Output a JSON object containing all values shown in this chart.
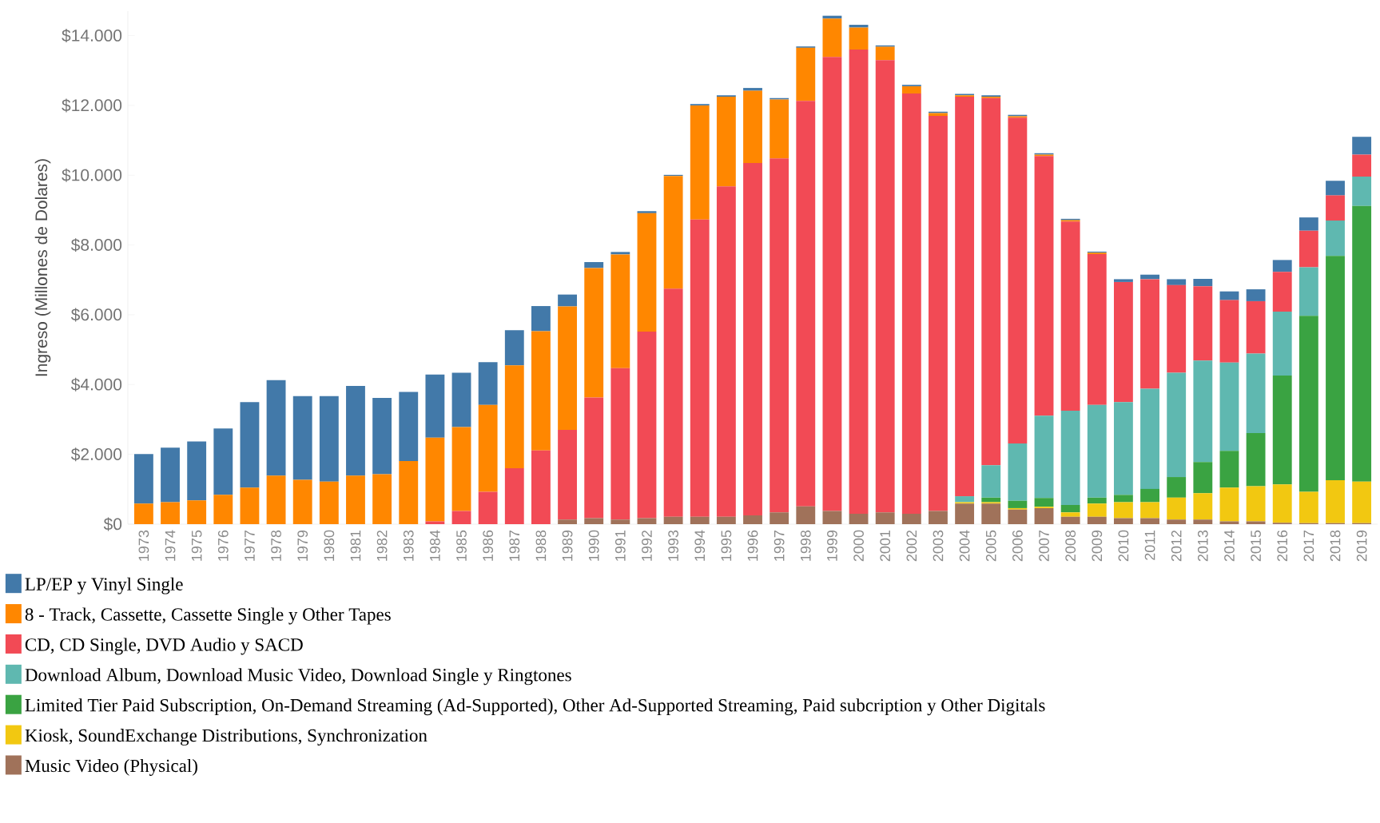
{
  "chart_data": {
    "type": "bar",
    "stacked": true,
    "ylabel": "Ingreso (Millones de Dolares)",
    "legend": "bottom",
    "categories": [
      "1973",
      "1974",
      "1975",
      "1976",
      "1977",
      "1978",
      "1979",
      "1980",
      "1981",
      "1982",
      "1983",
      "1984",
      "1985",
      "1986",
      "1987",
      "1988",
      "1989",
      "1990",
      "1991",
      "1992",
      "1993",
      "1994",
      "1995",
      "1996",
      "1997",
      "1998",
      "1999",
      "2000",
      "2001",
      "2002",
      "2003",
      "2004",
      "2005",
      "2006",
      "2007",
      "2008",
      "2009",
      "2010",
      "2011",
      "2012",
      "2013",
      "2014",
      "2015",
      "2016",
      "2017",
      "2018",
      "2019"
    ],
    "ylim": [
      0,
      14700
    ],
    "yticks": [
      {
        "value": 0,
        "label": "$0"
      },
      {
        "value": 2000,
        "label": "$2.000"
      },
      {
        "value": 4000,
        "label": "$4.000"
      },
      {
        "value": 6000,
        "label": "$6.000"
      },
      {
        "value": 8000,
        "label": "$8.000"
      },
      {
        "value": 10000,
        "label": "$10.000"
      },
      {
        "value": 12000,
        "label": "$12.000"
      },
      {
        "value": 14000,
        "label": "$14.000"
      }
    ],
    "series": [
      {
        "name": "Music Video (Physical)",
        "color": "#a0725a",
        "values": [
          0,
          0,
          0,
          0,
          0,
          0,
          0,
          0,
          0,
          0,
          0,
          0,
          0,
          0,
          0,
          0,
          130,
          170,
          130,
          170,
          210,
          210,
          210,
          250,
          340,
          510,
          380,
          300,
          340,
          300,
          380,
          590,
          590,
          420,
          460,
          210,
          210,
          170,
          170,
          130,
          130,
          80,
          80,
          40,
          30,
          30,
          30
        ]
      },
      {
        "name": "Kiosk, SoundExchange Distributions, Synchronization",
        "color": "#f2c811",
        "values": [
          0,
          0,
          0,
          0,
          0,
          0,
          0,
          0,
          0,
          0,
          0,
          0,
          0,
          0,
          0,
          0,
          0,
          0,
          0,
          0,
          0,
          0,
          0,
          0,
          0,
          0,
          0,
          0,
          0,
          0,
          0,
          40,
          40,
          40,
          40,
          130,
          380,
          460,
          460,
          630,
          760,
          970,
          1010,
          1100,
          900,
          1230,
          1190
        ]
      },
      {
        "name": "Limited Tier Paid Subscription, On-Demand Streaming (Ad-Supported), Other Ad-Supported Streaming, Paid subcription y Other Digitals",
        "color": "#3aa342",
        "values": [
          0,
          0,
          0,
          0,
          0,
          0,
          0,
          0,
          0,
          0,
          0,
          0,
          0,
          0,
          0,
          0,
          0,
          0,
          0,
          0,
          0,
          0,
          0,
          0,
          0,
          0,
          0,
          0,
          0,
          0,
          0,
          0,
          130,
          210,
          250,
          210,
          170,
          210,
          380,
          590,
          890,
          1050,
          1520,
          3120,
          5040,
          6430,
          7900
        ]
      },
      {
        "name": "Download Album, Download Music Video, Download Single y Ringtones",
        "color": "#5fb8b0",
        "values": [
          0,
          0,
          0,
          0,
          0,
          0,
          0,
          0,
          0,
          0,
          0,
          0,
          0,
          0,
          0,
          0,
          0,
          0,
          0,
          0,
          0,
          0,
          0,
          0,
          0,
          0,
          0,
          0,
          0,
          0,
          0,
          170,
          930,
          1640,
          2360,
          2700,
          2660,
          2660,
          2870,
          2990,
          2910,
          2530,
          2280,
          1830,
          1390,
          1010,
          840
        ]
      },
      {
        "name": "CD, CD Single, DVD Audio y SACD",
        "color": "#f24a55",
        "values": [
          0,
          0,
          0,
          0,
          0,
          0,
          0,
          0,
          0,
          0,
          0,
          80,
          380,
          930,
          1600,
          2110,
          2570,
          3460,
          4340,
          5350,
          6540,
          8520,
          9470,
          10100,
          10140,
          11620,
          13010,
          13300,
          12960,
          12040,
          11320,
          11450,
          10520,
          9340,
          7440,
          5420,
          4320,
          3440,
          3140,
          2510,
          2130,
          1790,
          1500,
          1140,
          1050,
          720,
          630
        ]
      },
      {
        "name": "8 - Track, Cassette, Cassette Single y Other Tapes",
        "color": "#ff8700",
        "values": [
          590,
          630,
          680,
          840,
          1050,
          1390,
          1270,
          1220,
          1390,
          1430,
          1810,
          2400,
          2400,
          2490,
          2950,
          3420,
          3540,
          3710,
          3260,
          3390,
          3230,
          3270,
          2570,
          2070,
          1690,
          1520,
          1100,
          630,
          380,
          210,
          80,
          40,
          40,
          40,
          40,
          40,
          40,
          0,
          0,
          0,
          0,
          0,
          0,
          0,
          0,
          0,
          0
        ]
      },
      {
        "name": "LP/EP y Vinyl Single",
        "color": "#4279a9",
        "values": [
          1420,
          1560,
          1690,
          1900,
          2450,
          2740,
          2400,
          2450,
          2570,
          2190,
          1980,
          1810,
          1560,
          1220,
          1010,
          720,
          340,
          170,
          70,
          60,
          30,
          40,
          40,
          80,
          40,
          40,
          80,
          80,
          40,
          40,
          40,
          40,
          40,
          40,
          40,
          40,
          30,
          80,
          130,
          170,
          210,
          250,
          340,
          340,
          380,
          420,
          510
        ]
      }
    ]
  }
}
